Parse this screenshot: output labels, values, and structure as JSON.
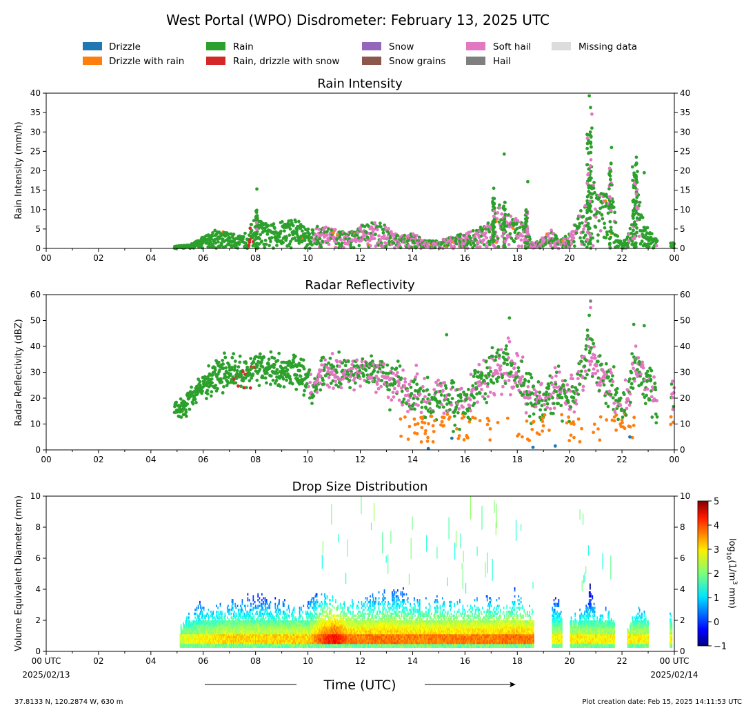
{
  "title": "West Portal (WPO) Disdrometer: February 13, 2025 UTC",
  "legend": [
    {
      "label": "Drizzle",
      "color": "#1f77b4"
    },
    {
      "label": "Drizzle with rain",
      "color": "#ff7f0e"
    },
    {
      "label": "Rain",
      "color": "#2ca02c"
    },
    {
      "label": "Rain, drizzle with snow",
      "color": "#d62728"
    },
    {
      "label": "Snow",
      "color": "#9467bd"
    },
    {
      "label": "Snow grains",
      "color": "#8c564b"
    },
    {
      "label": "Soft hail",
      "color": "#e377c2"
    },
    {
      "label": "Hail",
      "color": "#7f7f7f"
    },
    {
      "label": "Missing data",
      "color": "#dcdcdc"
    }
  ],
  "xaxis_label": "Time (UTC)",
  "x_tick_labels": [
    "00",
    "02",
    "04",
    "06",
    "08",
    "10",
    "12",
    "14",
    "16",
    "18",
    "20",
    "22",
    "00"
  ],
  "bottom_x_tick_labels": [
    "00 UTC",
    "02",
    "04",
    "06",
    "08",
    "10",
    "12",
    "14",
    "16",
    "18",
    "20",
    "22",
    "00 UTC"
  ],
  "start_date": "2025/02/13",
  "end_date": "2025/02/14",
  "footer_left": "37.8133 N, 120.2874 W, 630 m",
  "footer_right": "Plot creation date: Feb 15, 2025 14:11:53 UTC",
  "chart_data": [
    {
      "type": "scatter",
      "title": "Rain Intensity",
      "ylabel": "Rain Intensity (mm/h)",
      "xlim": [
        0,
        24
      ],
      "ylim": [
        0,
        40
      ],
      "yticks": [
        0,
        5,
        10,
        15,
        20,
        25,
        30,
        35,
        40
      ],
      "envelope_x": [
        4.9,
        5.5,
        6,
        6.5,
        7,
        7.5,
        8,
        8.5,
        9,
        9.5,
        10,
        10.5,
        11,
        11.5,
        12,
        12.5,
        13,
        13.5,
        14,
        14.5,
        15,
        15.5,
        16,
        16.5,
        17,
        17.3,
        17.6,
        18,
        18.3,
        18.6,
        19,
        19.3,
        19.6,
        20,
        20.3,
        20.6,
        20.8,
        21,
        21.3,
        21.6,
        21.8,
        22,
        22.3,
        22.5,
        22.8,
        23,
        23.5,
        24
      ],
      "envelope_y": [
        0.5,
        1,
        3,
        5,
        4,
        3,
        8,
        6,
        7,
        8,
        5,
        6,
        5,
        4,
        6,
        7,
        6,
        3,
        4,
        2,
        2,
        3,
        4,
        5,
        8,
        12,
        9,
        8,
        6,
        1,
        3,
        5,
        2,
        4,
        8,
        12,
        30,
        15,
        14,
        18,
        4,
        1,
        5,
        18,
        8,
        5,
        1,
        1.5
      ],
      "series": [
        {
          "name": "Rain",
          "color": "#2ca02c"
        },
        {
          "name": "Soft hail",
          "color": "#e377c2"
        },
        {
          "name": "Rain, drizzle with snow",
          "color": "#d62728"
        },
        {
          "name": "Drizzle with rain",
          "color": "#ff7f0e"
        }
      ],
      "outliers": [
        {
          "x": 20.75,
          "y": 39.3,
          "s": "Rain"
        },
        {
          "x": 20.8,
          "y": 36.3,
          "s": "Rain"
        },
        {
          "x": 20.85,
          "y": 34.6,
          "s": "Soft hail"
        },
        {
          "x": 20.85,
          "y": 31,
          "s": "Rain"
        },
        {
          "x": 21.6,
          "y": 26,
          "s": "Rain"
        },
        {
          "x": 17.5,
          "y": 24.3,
          "s": "Rain"
        },
        {
          "x": 22.55,
          "y": 23.5,
          "s": "Rain"
        },
        {
          "x": 22.4,
          "y": 21,
          "s": "Rain"
        },
        {
          "x": 22.85,
          "y": 19.5,
          "s": "Rain"
        },
        {
          "x": 18.4,
          "y": 17.2,
          "s": "Rain"
        },
        {
          "x": 17.1,
          "y": 15.5,
          "s": "Rain"
        },
        {
          "x": 8.05,
          "y": 15.3,
          "s": "Rain"
        }
      ]
    },
    {
      "type": "scatter",
      "title": "Radar Reflectivity",
      "ylabel": "Radar Reflectivity (dBZ)",
      "xlim": [
        0,
        24
      ],
      "ylim": [
        0,
        60
      ],
      "yticks": [
        0,
        10,
        20,
        30,
        40,
        50,
        60
      ],
      "center_x": [
        4.9,
        5.2,
        5.5,
        6,
        6.5,
        7,
        7.5,
        8,
        8.5,
        9,
        9.5,
        10,
        10.2,
        10.5,
        11,
        11.5,
        12,
        12.5,
        13,
        13.5,
        14,
        14.5,
        15,
        15.5,
        16,
        16.5,
        17,
        17.5,
        18,
        18.5,
        19,
        19.5,
        20,
        20.5,
        20.8,
        21,
        21.5,
        22,
        22.5,
        23,
        23.3
      ],
      "center_y": [
        17,
        15,
        20,
        25,
        29,
        30,
        28,
        33,
        31,
        30,
        31,
        28,
        22,
        30,
        31,
        29,
        31,
        30,
        28,
        24,
        22,
        18,
        20,
        18,
        16,
        26,
        30,
        33,
        30,
        20,
        18,
        25,
        18,
        28,
        40,
        30,
        26,
        14,
        32,
        26,
        20
      ],
      "series": [
        {
          "name": "Rain",
          "color": "#2ca02c"
        },
        {
          "name": "Soft hail",
          "color": "#e377c2"
        },
        {
          "name": "Drizzle with rain",
          "color": "#ff7f0e"
        },
        {
          "name": "Drizzle",
          "color": "#1f77b4"
        },
        {
          "name": "Hail",
          "color": "#7f7f7f"
        }
      ],
      "outliers": [
        {
          "x": 20.8,
          "y": 57.5,
          "s": "Hail"
        },
        {
          "x": 20.8,
          "y": 55,
          "s": "Soft hail"
        },
        {
          "x": 20.75,
          "y": 52,
          "s": "Rain"
        },
        {
          "x": 17.7,
          "y": 51,
          "s": "Rain"
        },
        {
          "x": 22.45,
          "y": 48.5,
          "s": "Rain"
        },
        {
          "x": 22.85,
          "y": 48,
          "s": "Rain"
        },
        {
          "x": 15.3,
          "y": 44.5,
          "s": "Rain"
        },
        {
          "x": 14.6,
          "y": 0.5,
          "s": "Drizzle"
        },
        {
          "x": 18.6,
          "y": 1,
          "s": "Drizzle"
        },
        {
          "x": 19.45,
          "y": 1.5,
          "s": "Drizzle"
        },
        {
          "x": 15.5,
          "y": 4.5,
          "s": "Drizzle"
        },
        {
          "x": 22.3,
          "y": 5,
          "s": "Drizzle"
        }
      ]
    },
    {
      "type": "heatmap",
      "title": "Drop Size Distribution",
      "ylabel": "Volume Equivalent Diameter (mm)",
      "xlim": [
        0,
        24
      ],
      "ylim": [
        0,
        10
      ],
      "yticks": [
        0,
        2,
        4,
        6,
        8,
        10
      ],
      "colorbar_label": "log10(1/m³ mm)",
      "colorbar_ticks": [
        -1,
        0,
        1,
        2,
        3,
        4,
        5
      ],
      "colorbar_range": [
        -1,
        5
      ],
      "data_segments": [
        [
          5.1,
          18.6
        ],
        [
          19.3,
          19.7
        ],
        [
          20.0,
          21.7
        ],
        [
          22.2,
          23.0
        ],
        [
          23.8,
          23.9
        ]
      ],
      "top_x": [
        5.1,
        5.5,
        6,
        6.5,
        7,
        7.5,
        8,
        8.5,
        9,
        9.5,
        10,
        10.5,
        11,
        11.5,
        12,
        12.5,
        13,
        13.5,
        14,
        14.5,
        15,
        15.5,
        16,
        16.5,
        17,
        17.5,
        18,
        18.5,
        19.5,
        20,
        20.5,
        20.8,
        21,
        21.5,
        22.3,
        22.6,
        23,
        23.85
      ],
      "top_y": [
        1.5,
        2.5,
        3,
        2.8,
        3,
        3,
        3.5,
        3.2,
        3,
        2.5,
        3,
        3.6,
        3.2,
        3,
        3,
        3.5,
        3.8,
        3.8,
        3,
        3,
        3.3,
        3,
        3,
        3,
        3.3,
        3.3,
        3.6,
        2.5,
        3.5,
        2,
        2.5,
        4,
        2.5,
        2.5,
        1.5,
        3.3,
        2,
        2.5
      ],
      "core_x": [
        5.1,
        6,
        7,
        8,
        9,
        10,
        10.5,
        11,
        11.5,
        12,
        13,
        14,
        15,
        16,
        17,
        17.5,
        18,
        18.6
      ],
      "core_level": [
        2.5,
        2.8,
        3,
        3,
        3,
        3,
        3.8,
        4.2,
        3.6,
        3.5,
        3.6,
        3.5,
        3.5,
        3.5,
        3.5,
        3.6,
        3.6,
        3.5
      ]
    }
  ]
}
